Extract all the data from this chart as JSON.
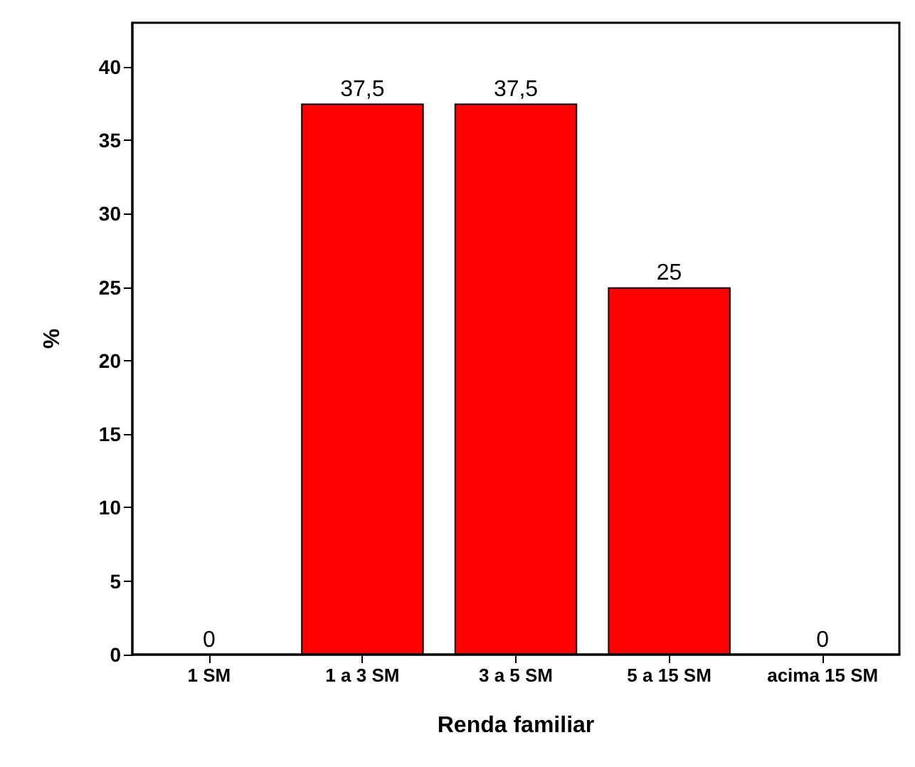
{
  "chart_data": {
    "type": "bar",
    "xlabel": "Renda familiar",
    "ylabel": "%",
    "categories": [
      "1 SM",
      "1 a 3 SM",
      "3 a 5 SM",
      "5 a 15 SM",
      "acima 15 SM"
    ],
    "values": [
      0,
      37.5,
      37.5,
      25,
      0
    ],
    "value_labels": [
      "0",
      "37,5",
      "37,5",
      "25",
      "0"
    ],
    "color": "#ff0000",
    "ylim": [
      0,
      43
    ],
    "yticks": [
      0,
      5,
      10,
      15,
      20,
      25,
      30,
      35,
      40
    ],
    "grid": false
  }
}
